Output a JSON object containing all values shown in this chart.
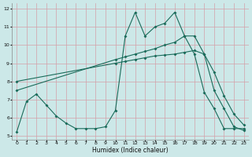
{
  "xlabel": "Humidex (Indice chaleur)",
  "bg_color": "#cce8e8",
  "grid_color": "#d4a0a8",
  "line_color": "#1a6b5a",
  "xlim": [
    -0.5,
    23.5
  ],
  "ylim": [
    4.8,
    12.3
  ],
  "xticks": [
    0,
    1,
    2,
    3,
    4,
    5,
    6,
    7,
    8,
    9,
    10,
    11,
    12,
    13,
    14,
    15,
    16,
    17,
    18,
    19,
    20,
    21,
    22,
    23
  ],
  "yticks": [
    5,
    6,
    7,
    8,
    9,
    10,
    11,
    12
  ],
  "line1_x": [
    0,
    1,
    2,
    3,
    4,
    5,
    6,
    7,
    8,
    9,
    10,
    11,
    12,
    13,
    14,
    15,
    16,
    17,
    18,
    19,
    20,
    21,
    22,
    23
  ],
  "line1_y": [
    5.2,
    6.9,
    7.3,
    6.7,
    6.1,
    5.7,
    5.4,
    5.4,
    5.4,
    5.5,
    6.4,
    10.5,
    11.8,
    10.5,
    11.0,
    11.2,
    11.8,
    10.5,
    9.5,
    7.4,
    6.5,
    5.4,
    5.4,
    5.4
  ],
  "line2_x": [
    0,
    10,
    11,
    12,
    13,
    14,
    15,
    16,
    17,
    18,
    19,
    20,
    21,
    22,
    23
  ],
  "line2_y": [
    7.5,
    9.2,
    9.35,
    9.5,
    9.65,
    9.8,
    10.0,
    10.15,
    10.5,
    10.5,
    9.5,
    7.5,
    6.5,
    5.5,
    5.3
  ],
  "line3_x": [
    0,
    10,
    11,
    12,
    13,
    14,
    15,
    16,
    17,
    18,
    19,
    20,
    21,
    22,
    23
  ],
  "line3_y": [
    8.0,
    9.0,
    9.1,
    9.2,
    9.3,
    9.4,
    9.45,
    9.5,
    9.6,
    9.7,
    9.5,
    8.5,
    7.2,
    6.2,
    5.6
  ]
}
